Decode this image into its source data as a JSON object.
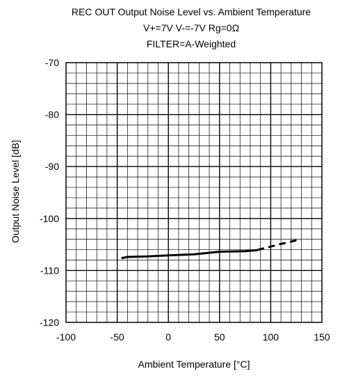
{
  "chart_data": {
    "type": "line",
    "title_lines": [
      "REC OUT Output Noise Level vs. Ambient Temperature",
      "V+=7V V-=-7V Rg=0Ω",
      "FILTER=A-Weighted"
    ],
    "xlabel": "Ambient Temperature [°C]",
    "ylabel": "Output Noise Level [dB]",
    "xlim": [
      -100,
      150
    ],
    "ylim": [
      -120,
      -70
    ],
    "x_ticks": [
      -100,
      -50,
      0,
      50,
      100,
      150
    ],
    "y_ticks": [
      -70,
      -80,
      -90,
      -100,
      -110,
      -120
    ],
    "x_tick_labels": [
      "-100",
      "-50",
      "0",
      "50",
      "100",
      "150"
    ],
    "y_tick_labels": [
      "-70",
      "-80",
      "-90",
      "-100",
      "-110",
      "-120"
    ],
    "grid": true,
    "minor_grid": {
      "x_step": 10,
      "y_step": 2
    },
    "series": [
      {
        "line_style": "solid",
        "color": "#000000",
        "x": [
          -45,
          -40,
          -20,
          0,
          25,
          50,
          75,
          87
        ],
        "y": [
          -107.6,
          -107.4,
          -107.3,
          -107.1,
          -106.9,
          -106.4,
          -106.3,
          -106.1
        ]
      },
      {
        "line_style": "dashed",
        "color": "#000000",
        "x": [
          88,
          100,
          110,
          125
        ],
        "y": [
          -106.0,
          -105.4,
          -104.9,
          -104.2
        ]
      }
    ]
  }
}
